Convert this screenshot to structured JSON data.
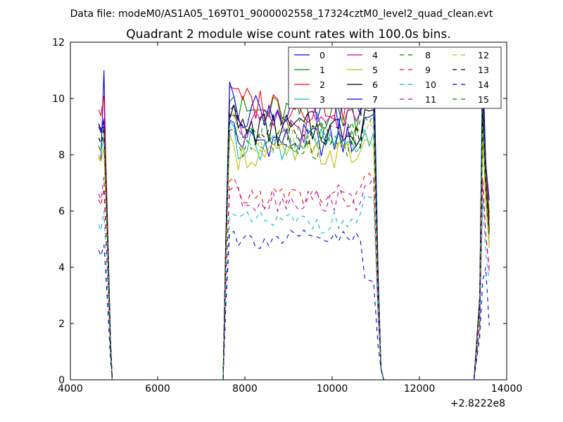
{
  "suptitle": "Data file: modeM0/AS1A05_169T01_9000002558_17324cztM0_level2_quad_clean.evt",
  "chart_data": {
    "type": "line",
    "title": "Quadrant 2 module wise count rates with 100.0s bins.",
    "xlabel": "",
    "ylabel": "",
    "xlim": [
      4000,
      14000
    ],
    "ylim": [
      0,
      12
    ],
    "x_offset_label": "+2.8222e8",
    "x_ticks": [
      4000,
      6000,
      8000,
      10000,
      12000,
      14000
    ],
    "y_ticks": [
      0,
      2,
      4,
      6,
      8,
      10,
      12
    ],
    "legend_location": "top-right",
    "segments": [
      {
        "name": "gti1",
        "x_start": 4650,
        "x_end": 4950
      },
      {
        "name": "gti2",
        "x_start": 7550,
        "x_end": 11100
      },
      {
        "name": "gti3",
        "x_start": 13350,
        "x_end": 13600
      }
    ],
    "series": [
      {
        "name": "0",
        "color": "#0000ff",
        "dash": "solid",
        "level_main": 8.5,
        "level_start": 8.0,
        "level_spike": 11.0,
        "level_end": 9.4
      },
      {
        "name": "1",
        "color": "#008000",
        "dash": "solid",
        "level_main": 9.5,
        "level_start": 9.1,
        "level_spike": 9.0,
        "level_end": 10.8
      },
      {
        "name": "2",
        "color": "#ff0000",
        "dash": "solid",
        "level_main": 9.8,
        "level_start": 9.6,
        "level_spike": 10.1,
        "level_end": 10.3
      },
      {
        "name": "3",
        "color": "#00bfbf",
        "dash": "solid",
        "level_main": 8.4,
        "level_start": 8.3,
        "level_spike": 8.6,
        "level_end": 8.6
      },
      {
        "name": "4",
        "color": "#bf00bf",
        "dash": "solid",
        "level_main": 9.0,
        "level_start": 9.0,
        "level_spike": 9.3,
        "level_end": 9.8
      },
      {
        "name": "5",
        "color": "#bfbf00",
        "dash": "solid",
        "level_main": 8.0,
        "level_start": 8.0,
        "level_spike": 8.2,
        "level_end": 8.5
      },
      {
        "name": "6",
        "color": "#000000",
        "dash": "solid",
        "level_main": 8.9,
        "level_start": 9.1,
        "level_spike": 9.0,
        "level_end": 9.6
      },
      {
        "name": "7",
        "color": "#0000ff",
        "dash": "solid",
        "level_main": 9.6,
        "level_start": 9.0,
        "level_spike": 9.2,
        "level_end": 11.6
      },
      {
        "name": "8",
        "color": "#008000",
        "dash": "dashed",
        "level_main": 8.4,
        "level_start": 8.6,
        "level_spike": 8.8,
        "level_end": 9.2
      },
      {
        "name": "9",
        "color": "#ff0000",
        "dash": "dashed",
        "level_main": 6.5,
        "level_start": 6.4,
        "level_spike": 6.8,
        "level_end": 7.2
      },
      {
        "name": "10",
        "color": "#00bfbf",
        "dash": "dashed",
        "level_main": 5.6,
        "level_start": 5.5,
        "level_spike": 6.0,
        "level_end": 6.4
      },
      {
        "name": "11",
        "color": "#bf00bf",
        "dash": "dashed",
        "level_main": 6.4,
        "level_start": 6.6,
        "level_spike": 7.2,
        "level_end": 7.0
      },
      {
        "name": "12",
        "color": "#bfbf00",
        "dash": "dashed",
        "level_main": 8.6,
        "level_start": 7.9,
        "level_spike": 8.3,
        "level_end": 9.0
      },
      {
        "name": "13",
        "color": "#000000",
        "dash": "dashed",
        "level_main": 8.9,
        "level_start": 8.6,
        "level_spike": 9.0,
        "level_end": 9.8
      },
      {
        "name": "14",
        "color": "#0000ff",
        "dash": "dashed",
        "level_main": 5.0,
        "level_start": 4.6,
        "level_spike": 4.8,
        "level_end": 3.5
      },
      {
        "name": "15",
        "color": "#008000",
        "dash": "dashed",
        "level_main": 8.8,
        "level_start": 8.3,
        "level_spike": 8.9,
        "level_end": 10.5
      }
    ]
  }
}
